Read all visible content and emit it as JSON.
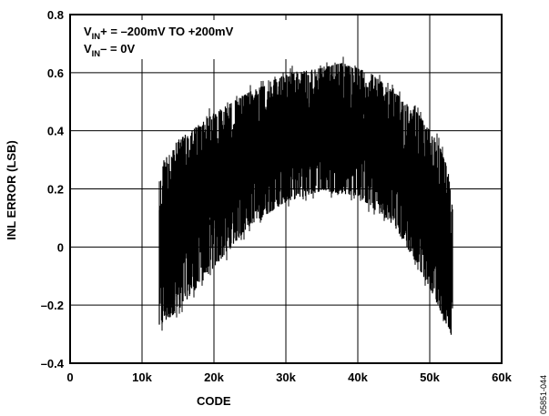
{
  "chart_data": {
    "type": "line",
    "title": "",
    "xlabel": "CODE",
    "ylabel": "INL ERROR (LSB)",
    "xlim": [
      0,
      60000
    ],
    "ylim": [
      -0.4,
      0.8
    ],
    "x_ticks": [
      0,
      10000,
      20000,
      30000,
      40000,
      50000,
      60000
    ],
    "x_tick_labels": [
      "0",
      "10k",
      "20k",
      "30k",
      "40k",
      "50k",
      "60k"
    ],
    "y_ticks": [
      -0.4,
      -0.2,
      0,
      0.2,
      0.4,
      0.6,
      0.8
    ],
    "y_tick_labels": [
      "–0.4",
      "–0.2",
      "0",
      "0.2",
      "0.4",
      "0.6",
      "0.8"
    ],
    "grid": true,
    "annotations": {
      "line1_main": "V",
      "line1_sub": "IN",
      "line1_rest": "+ = –200mV TO +200mV",
      "line2_main": "V",
      "line2_sub": "IN",
      "line2_rest": "– = 0V"
    },
    "figure_id": "05851-044",
    "series": [
      {
        "code_range": [
          12300,
          53200
        ],
        "upper_envelope": [
          {
            "x": 12300,
            "y": 0.21
          },
          {
            "x": 13000,
            "y": 0.33
          },
          {
            "x": 15000,
            "y": 0.4
          },
          {
            "x": 20000,
            "y": 0.49
          },
          {
            "x": 25000,
            "y": 0.56
          },
          {
            "x": 30000,
            "y": 0.62
          },
          {
            "x": 35000,
            "y": 0.64
          },
          {
            "x": 38000,
            "y": 0.66
          },
          {
            "x": 42000,
            "y": 0.62
          },
          {
            "x": 45000,
            "y": 0.56
          },
          {
            "x": 48000,
            "y": 0.5
          },
          {
            "x": 51000,
            "y": 0.4
          },
          {
            "x": 52500,
            "y": 0.3
          },
          {
            "x": 53200,
            "y": 0.16
          }
        ],
        "lower_envelope": [
          {
            "x": 12300,
            "y": -0.31
          },
          {
            "x": 15000,
            "y": -0.25
          },
          {
            "x": 20000,
            "y": -0.1
          },
          {
            "x": 25000,
            "y": 0.05
          },
          {
            "x": 30000,
            "y": 0.13
          },
          {
            "x": 35000,
            "y": 0.17
          },
          {
            "x": 40000,
            "y": 0.15
          },
          {
            "x": 45000,
            "y": 0.05
          },
          {
            "x": 48000,
            "y": -0.08
          },
          {
            "x": 50000,
            "y": -0.17
          },
          {
            "x": 52000,
            "y": -0.28
          },
          {
            "x": 53200,
            "y": -0.34
          }
        ]
      }
    ]
  }
}
